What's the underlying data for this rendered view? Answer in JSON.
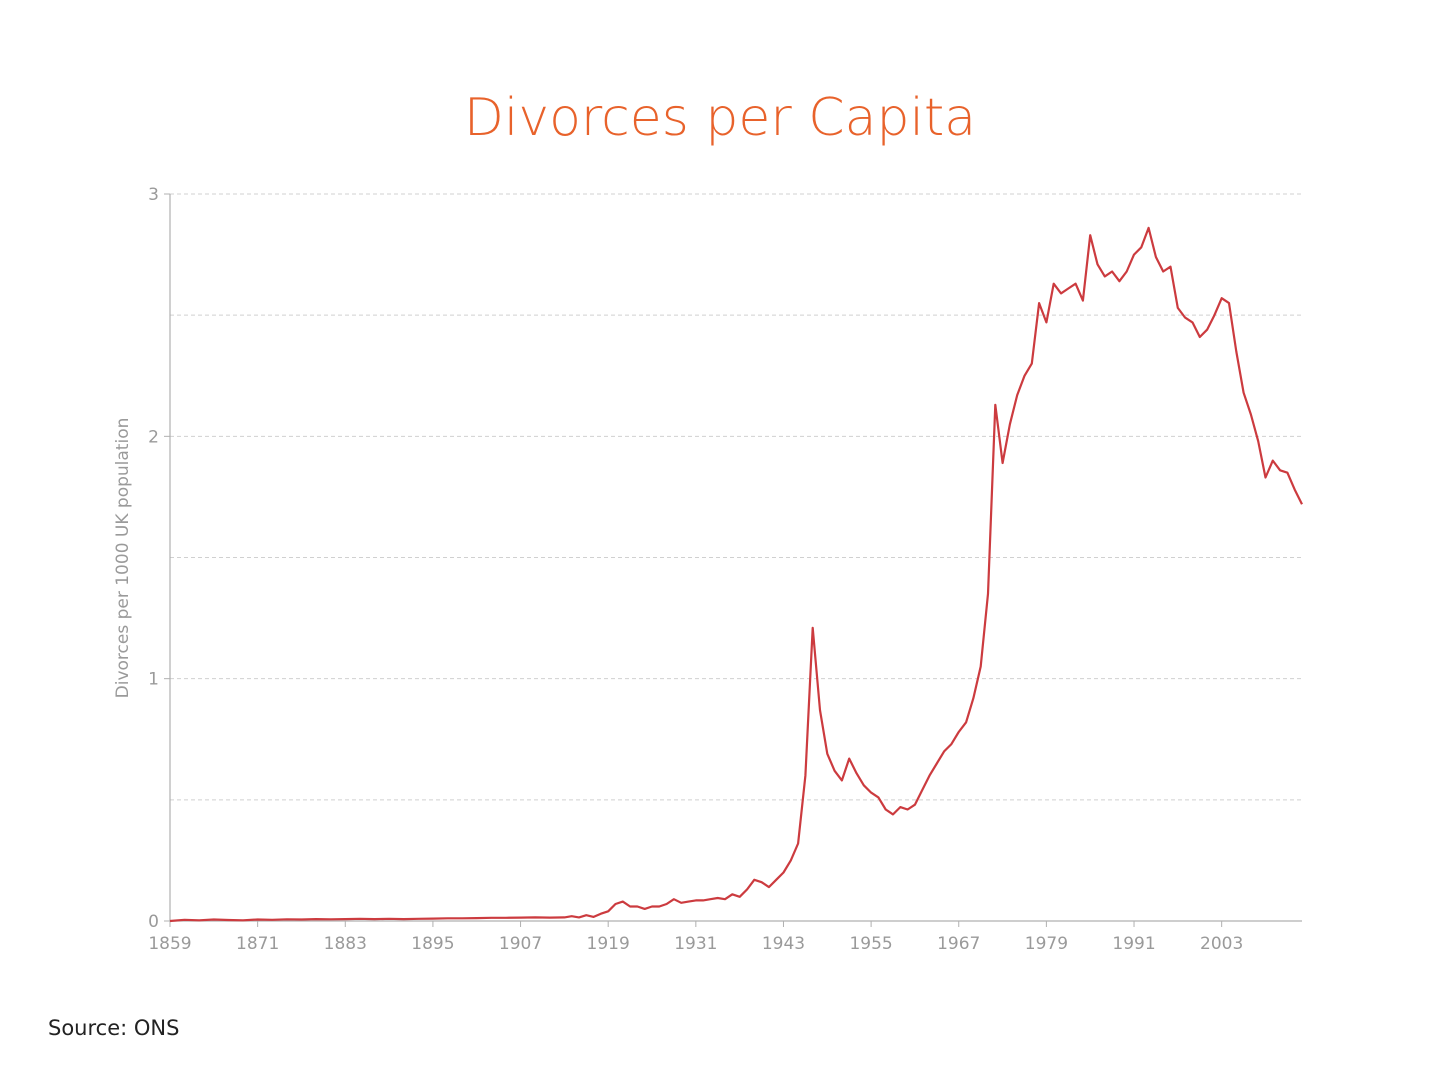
{
  "chart_data": {
    "type": "line",
    "title": "Divorces per Capita",
    "xlabel": "",
    "ylabel": "Divorces per 1000 UK population",
    "xlim": [
      1859,
      2014
    ],
    "ylim": [
      0,
      3
    ],
    "x_ticks": [
      "1859",
      "1871",
      "1883",
      "1895",
      "1907",
      "1919",
      "1931",
      "1943",
      "1955",
      "1967",
      "1979",
      "1991",
      "2003"
    ],
    "y_ticks": [
      "0",
      "1",
      "2",
      "3"
    ],
    "y_grid": [
      0.5,
      1,
      1.5,
      2,
      2.5,
      3
    ],
    "grid": "horizontal dashed",
    "series": [
      {
        "color": "#cc3b3f",
        "x": [
          1859,
          1861,
          1863,
          1865,
          1867,
          1869,
          1871,
          1873,
          1875,
          1877,
          1879,
          1881,
          1883,
          1885,
          1887,
          1889,
          1891,
          1893,
          1895,
          1897,
          1899,
          1901,
          1903,
          1905,
          1907,
          1909,
          1911,
          1913,
          1914,
          1915,
          1916,
          1917,
          1918,
          1919,
          1920,
          1921,
          1922,
          1923,
          1924,
          1925,
          1926,
          1927,
          1928,
          1929,
          1930,
          1931,
          1932,
          1933,
          1934,
          1935,
          1936,
          1937,
          1938,
          1939,
          1940,
          1941,
          1942,
          1943,
          1944,
          1945,
          1946,
          1947,
          1948,
          1949,
          1950,
          1951,
          1952,
          1953,
          1954,
          1955,
          1956,
          1957,
          1958,
          1959,
          1960,
          1961,
          1962,
          1963,
          1964,
          1965,
          1966,
          1967,
          1968,
          1969,
          1970,
          1971,
          1972,
          1973,
          1974,
          1975,
          1976,
          1977,
          1978,
          1979,
          1980,
          1981,
          1982,
          1983,
          1984,
          1985,
          1986,
          1987,
          1988,
          1989,
          1990,
          1991,
          1992,
          1993,
          1994,
          1995,
          1996,
          1997,
          1998,
          1999,
          2000,
          2001,
          2002,
          2003,
          2004,
          2005,
          2006,
          2007,
          2008,
          2009,
          2010,
          2011,
          2012,
          2013,
          2014
        ],
        "values": [
          0.0,
          0.005,
          0.003,
          0.006,
          0.004,
          0.003,
          0.006,
          0.005,
          0.007,
          0.006,
          0.008,
          0.007,
          0.008,
          0.009,
          0.008,
          0.009,
          0.008,
          0.009,
          0.01,
          0.011,
          0.011,
          0.012,
          0.013,
          0.013,
          0.014,
          0.015,
          0.014,
          0.015,
          0.02,
          0.015,
          0.024,
          0.017,
          0.03,
          0.04,
          0.07,
          0.08,
          0.06,
          0.06,
          0.05,
          0.06,
          0.06,
          0.07,
          0.09,
          0.075,
          0.08,
          0.085,
          0.085,
          0.09,
          0.095,
          0.09,
          0.11,
          0.1,
          0.13,
          0.17,
          0.16,
          0.14,
          0.17,
          0.2,
          0.25,
          0.32,
          0.6,
          1.21,
          0.87,
          0.69,
          0.62,
          0.58,
          0.67,
          0.61,
          0.56,
          0.53,
          0.51,
          0.46,
          0.44,
          0.47,
          0.46,
          0.48,
          0.54,
          0.6,
          0.65,
          0.7,
          0.73,
          0.78,
          0.82,
          0.92,
          1.05,
          1.35,
          2.13,
          1.89,
          2.05,
          2.17,
          2.25,
          2.3,
          2.55,
          2.47,
          2.63,
          2.59,
          2.61,
          2.63,
          2.56,
          2.83,
          2.71,
          2.66,
          2.68,
          2.64,
          2.68,
          2.75,
          2.78,
          2.86,
          2.74,
          2.68,
          2.7,
          2.53,
          2.49,
          2.47,
          2.41,
          2.44,
          2.5,
          2.57,
          2.55,
          2.35,
          2.18,
          2.09,
          1.98,
          1.83,
          1.9,
          1.86,
          1.85,
          1.78,
          1.72
        ]
      }
    ]
  },
  "footer": {
    "source": "Source: ONS"
  }
}
